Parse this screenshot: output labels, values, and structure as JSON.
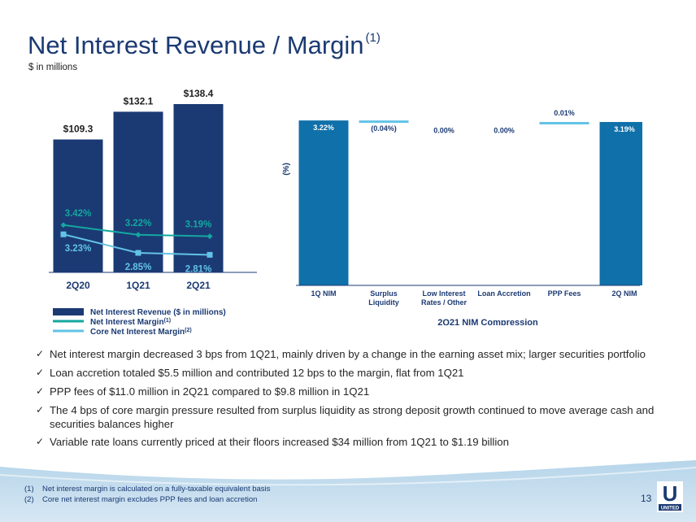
{
  "header": {
    "title": "Net Interest Revenue / Margin",
    "title_sup": "(1)",
    "subtitle": "$ in millions"
  },
  "colors": {
    "navy": "#1b3a73",
    "teal": "#13a7a0",
    "light_blue": "#62c3e6",
    "waterfall_blue": "#1070a9"
  },
  "left_chart": {
    "chart_data": {
      "type": "bar",
      "categories": [
        "2Q20",
        "1Q21",
        "2Q21"
      ],
      "series": [
        {
          "name": "Net Interest Revenue ($ in millions)",
          "values": [
            109.3,
            132.1,
            138.4
          ],
          "labels": [
            "$109.3",
            "$132.1",
            "$138.4"
          ]
        },
        {
          "name": "Net Interest Margin",
          "values": [
            3.42,
            3.22,
            3.19
          ],
          "labels": [
            "3.42%",
            "3.22%",
            "3.19%"
          ]
        },
        {
          "name": "Core Net Interest Margin",
          "values": [
            3.23,
            2.85,
            2.81
          ],
          "labels": [
            "3.23%",
            "2.85%",
            "2.81%"
          ]
        }
      ]
    },
    "legend": {
      "revenue": "Net Interest Revenue ($ in millions)",
      "nim": "Net Interest Margin",
      "nim_sup": "(1)",
      "core": "Core Net Interest Margin",
      "core_sup": "(2)"
    }
  },
  "right_chart": {
    "chart_data": {
      "type": "bar",
      "subtype": "waterfall",
      "categories": [
        "1Q NIM",
        "Surplus Liquidity",
        "Low Interest Rates / Other",
        "Loan Accretion",
        "PPP Fees",
        "2Q NIM"
      ],
      "values": [
        3.22,
        -0.04,
        0.0,
        0.0,
        0.01,
        3.19
      ],
      "labels": [
        "3.22%",
        "(0.04%)",
        "0.00%",
        "0.00%",
        "0.01%",
        "3.19%"
      ],
      "ylabel": "(%)",
      "xlabel": "2Q21 NIM Compression"
    }
  },
  "bullets": [
    "Net interest margin decreased 3 bps from 1Q21, mainly driven by a change in the earning asset mix; larger securities portfolio",
    "Loan accretion totaled $5.5 million and contributed 12 bps to the margin, flat from 1Q21",
    "PPP fees of $11.0 million in 2Q21 compared to $9.8 million in 1Q21",
    "The 4 bps of core margin pressure resulted from surplus liquidity as strong deposit growth continued to move average cash and securities balances higher",
    "Variable rate loans currently priced at their floors increased $34 million from 1Q21 to $1.19 billion"
  ],
  "footnotes": [
    {
      "num": "(1)",
      "text": "Net interest margin is calculated on a fully-taxable equivalent basis"
    },
    {
      "num": "(2)",
      "text": "Core net interest margin excludes PPP fees and loan accretion"
    }
  ],
  "page_number": "13",
  "logo": {
    "letter": "U",
    "text": "UNITED"
  }
}
